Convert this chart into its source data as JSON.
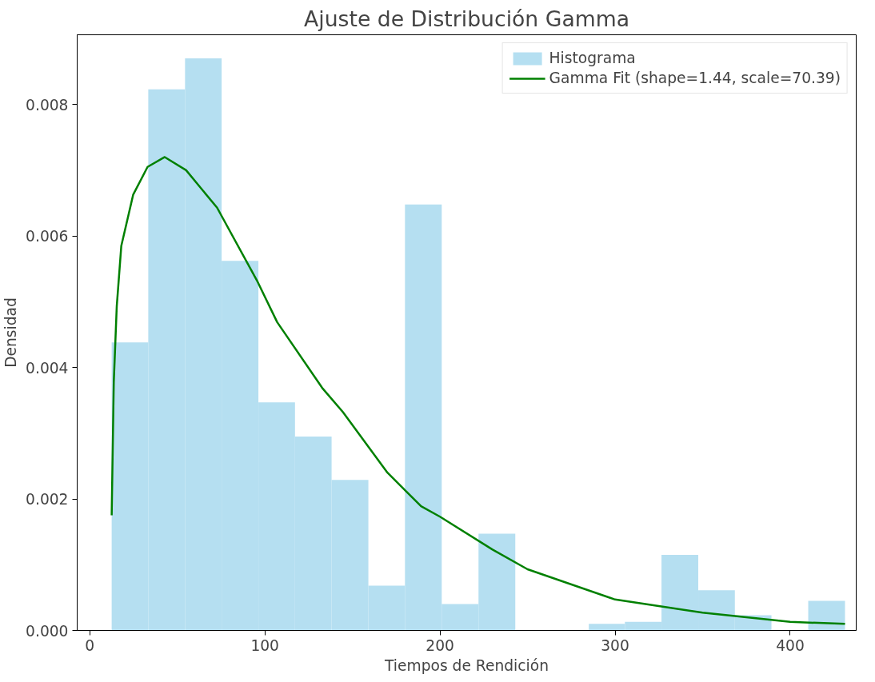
{
  "chart_data": {
    "type": "histogram",
    "title": "Ajuste de Distribución Gamma",
    "xlabel": "Tiempos de Rendición",
    "ylabel": "Densidad",
    "bins": [
      12.5,
      33.4,
      54.4,
      75.3,
      96.3,
      117.2,
      138.1,
      159.1,
      180.0,
      201.0,
      222.0,
      243.0,
      285.0,
      305.6,
      326.5,
      347.5,
      368.4,
      389.3,
      410.3,
      431.3
    ],
    "series": [
      {
        "name": "Histograma",
        "color": "#b5dff1",
        "values": [
          0.00438,
          0.00823,
          0.0087,
          0.00562,
          0.00347,
          0.00295,
          0.00229,
          0.00068,
          0.00648,
          0.0004,
          0.00147,
          0,
          0.0001,
          0.00013,
          0.00115,
          0.00061,
          0.00023,
          0,
          0.00045
        ]
      },
      {
        "type": "line",
        "name": "Gamma Fit (shape=1.44, scale=70.39)",
        "color": "#008000",
        "x": [
          12.5,
          13.7,
          15.4,
          18,
          24.8,
          33,
          42.8,
          55,
          72.7,
          95.9,
          107,
          132.7,
          144.6,
          170,
          189.2,
          200,
          230,
          250,
          300,
          350,
          400,
          431.3
        ],
        "values": [
          0.00175,
          0.00378,
          0.00493,
          0.00585,
          0.00663,
          0.00705,
          0.0072,
          0.007,
          0.00643,
          0.0053,
          0.00469,
          0.00369,
          0.00332,
          0.0024,
          0.00189,
          0.00173,
          0.00123,
          0.00093,
          0.00047,
          0.00027,
          0.00013,
          0.0001
        ]
      }
    ],
    "xlim": [
      -7.2,
      437.7
    ],
    "ylim": [
      0,
      0.00906
    ],
    "xticks": [
      0,
      100,
      200,
      300,
      400
    ],
    "yticks": [
      {
        "value": 0,
        "label": "0.000"
      },
      {
        "value": 0.002,
        "label": "0.002"
      },
      {
        "value": 0.004,
        "label": "0.004"
      },
      {
        "value": 0.006,
        "label": "0.006"
      },
      {
        "value": 0.008,
        "label": "0.008"
      }
    ],
    "grid": false,
    "legend": "top right"
  }
}
